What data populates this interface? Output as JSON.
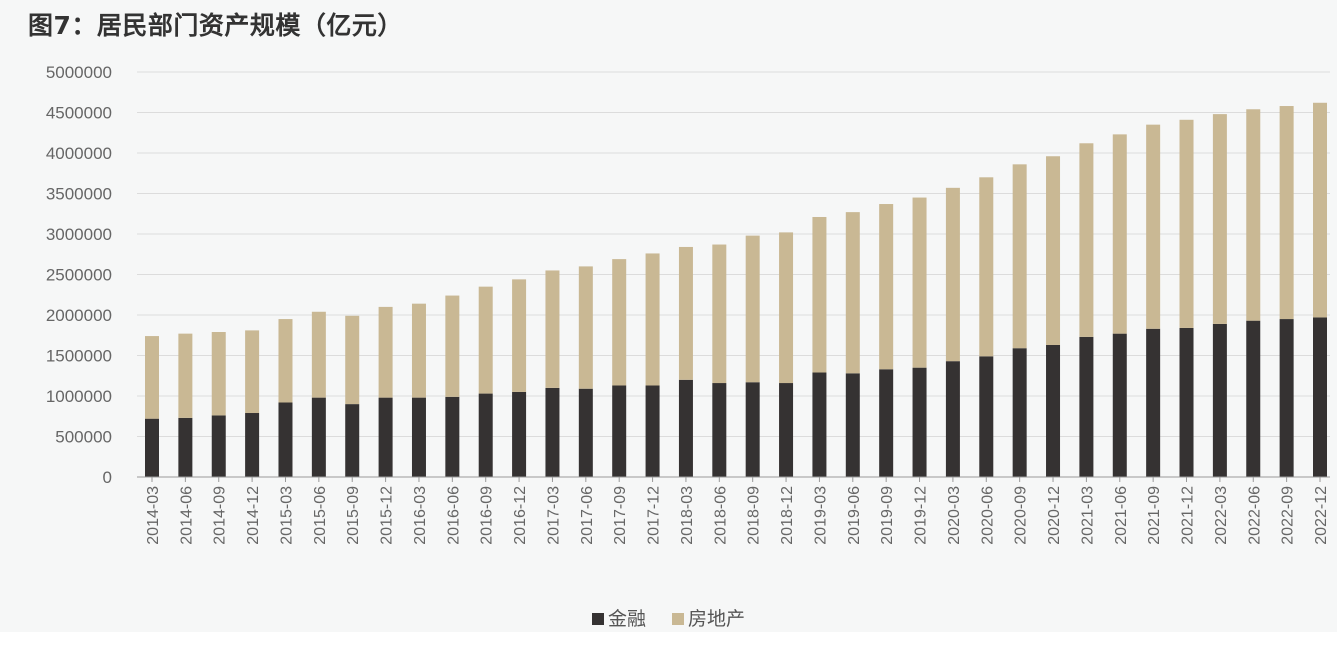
{
  "title": "图7：居民部门资产规模（亿元）",
  "colors": {
    "金融": "#353232",
    "房地产": "#c9b894",
    "grid": "#dcdcdc",
    "axis": "#999999"
  },
  "legend": {
    "finance_label": "金融",
    "realestate_label": "房地产"
  },
  "chart_data": {
    "type": "bar",
    "stacked": true,
    "title": "图7：居民部门资产规模（亿元）",
    "xlabel": "",
    "ylabel": "",
    "ylim": [
      0,
      5000000
    ],
    "yticks": [
      0,
      500000,
      1000000,
      1500000,
      2000000,
      2500000,
      3000000,
      3500000,
      4000000,
      4500000,
      5000000
    ],
    "grid": true,
    "legend_position": "bottom",
    "categories": [
      "2014-03",
      "2014-06",
      "2014-09",
      "2014-12",
      "2015-03",
      "2015-06",
      "2015-09",
      "2015-12",
      "2016-03",
      "2016-06",
      "2016-09",
      "2016-12",
      "2017-03",
      "2017-06",
      "2017-09",
      "2017-12",
      "2018-03",
      "2018-06",
      "2018-09",
      "2018-12",
      "2019-03",
      "2019-06",
      "2019-09",
      "2019-12",
      "2020-03",
      "2020-06",
      "2020-09",
      "2020-12",
      "2021-03",
      "2021-06",
      "2021-09",
      "2021-12",
      "2022-03",
      "2022-06",
      "2022-09",
      "2022-12"
    ],
    "series": [
      {
        "name": "金融",
        "values": [
          720000,
          730000,
          760000,
          790000,
          920000,
          980000,
          900000,
          980000,
          980000,
          990000,
          1030000,
          1050000,
          1100000,
          1090000,
          1130000,
          1130000,
          1200000,
          1160000,
          1170000,
          1160000,
          1290000,
          1280000,
          1330000,
          1350000,
          1430000,
          1490000,
          1590000,
          1630000,
          1730000,
          1770000,
          1830000,
          1840000,
          1890000,
          1930000,
          1950000,
          1970000
        ]
      },
      {
        "name": "房地产",
        "values": [
          1020000,
          1040000,
          1030000,
          1020000,
          1030000,
          1060000,
          1090000,
          1120000,
          1160000,
          1250000,
          1320000,
          1390000,
          1450000,
          1510000,
          1560000,
          1630000,
          1640000,
          1710000,
          1810000,
          1860000,
          1920000,
          1990000,
          2040000,
          2100000,
          2140000,
          2210000,
          2270000,
          2330000,
          2390000,
          2460000,
          2520000,
          2570000,
          2590000,
          2610000,
          2630000,
          2650000
        ]
      }
    ]
  }
}
